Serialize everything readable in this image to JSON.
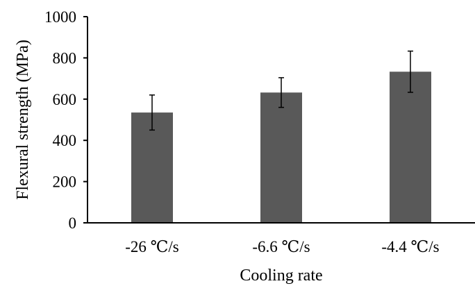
{
  "chart_data": {
    "type": "bar",
    "categories": [
      "-26 ℃/s",
      "-6.6 ℃/s",
      "-4.4 ℃/s"
    ],
    "values": [
      535,
      632,
      733
    ],
    "error": [
      85,
      72,
      100
    ],
    "ylabel": "Flexural strength (MPa)",
    "xlabel": "Cooling rate",
    "ylim": [
      0,
      1000
    ],
    "yticks": [
      0,
      200,
      400,
      600,
      800,
      1000
    ],
    "grid": false,
    "bar_color": "#595959",
    "error_color": "#000000"
  }
}
